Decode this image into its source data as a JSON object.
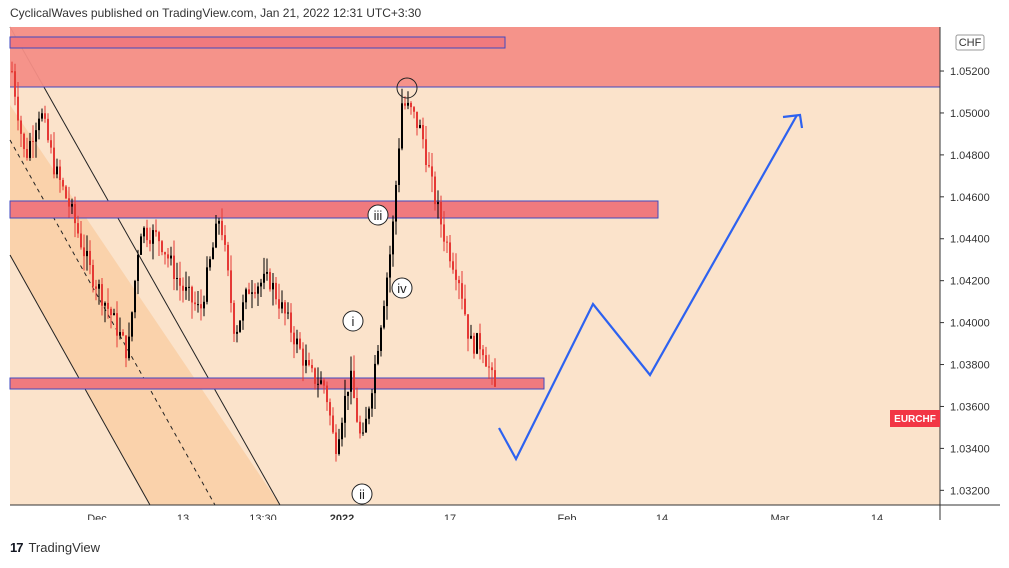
{
  "header": {
    "publisher_line": "CyclicalWaves published on TradingView.com, Jan 21, 2022 12:31 UTC+3:30"
  },
  "footer": {
    "logo_text": "TradingView"
  },
  "chart_data": {
    "type": "candlestick",
    "symbol_badge": "EURCHF",
    "currency_label": "CHF",
    "price_ticks": [
      "1.05200",
      "1.05000",
      "1.04800",
      "1.04600",
      "1.04400",
      "1.04200",
      "1.04000",
      "1.03800",
      "1.03600",
      "1.03400",
      "1.03200"
    ],
    "y_range": [
      1.0313,
      1.0541
    ],
    "time_labels": [
      "Dec",
      "13",
      "13:30",
      "2022",
      "17",
      "Feb",
      "14",
      "Mar",
      "14"
    ],
    "wave_labels": [
      "i",
      "ii",
      "iii",
      "iv"
    ],
    "colors": {
      "background": "#fbe3cb",
      "resistance_zone": "#f48e86",
      "level_box": "#f07a7e",
      "level_box_border": "#3f49c0",
      "channel_fill": "#f9cfa6",
      "projection": "#2d62f0",
      "candle_up": "#000000",
      "candle_down": "#e53935",
      "badge": "#f23645"
    },
    "zones": [
      {
        "name": "upper-resistance-zone",
        "y_from": 1.0511,
        "y_to": 1.0541
      },
      {
        "name": "upper-box",
        "y_from": 1.0532,
        "y_to": 1.0538
      },
      {
        "name": "middle-box",
        "y_from": 1.0451,
        "y_to": 1.046
      },
      {
        "name": "lower-box",
        "y_from": 1.0371,
        "y_to": 1.0376
      }
    ],
    "projection_path": [
      1.0354,
      1.0336,
      1.0409,
      1.0377,
      1.0498,
      1.0493
    ]
  }
}
